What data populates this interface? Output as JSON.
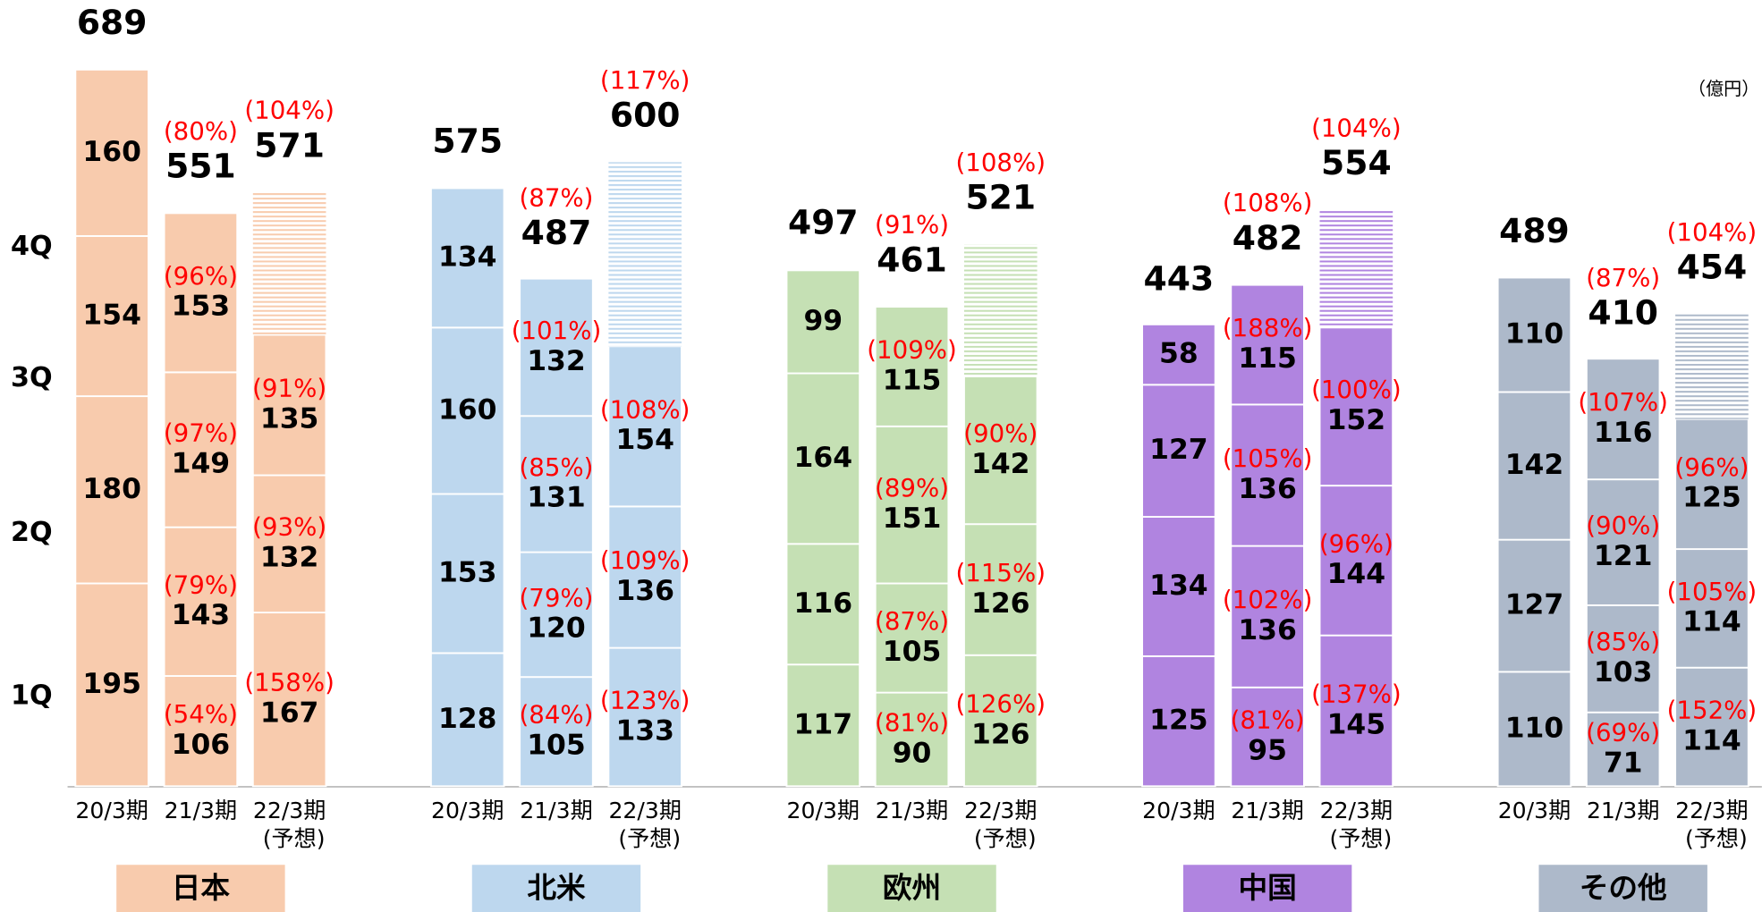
{
  "chart_data": {
    "type": "grouped-stacked-bar",
    "unit": "（億円）",
    "quarters": [
      "1Q",
      "2Q",
      "3Q",
      "4Q"
    ],
    "periods": [
      "20/3期",
      "21/3期",
      "22/3期"
    ],
    "forecast_note": "(予想)",
    "groups": [
      {
        "name": "日本",
        "color": "#f8cbad",
        "series": [
          {
            "values": [
              195,
              180,
              154,
              160
            ],
            "total": 689
          },
          {
            "values": [
              106,
              143,
              149,
              153
            ],
            "total": 551,
            "yoy_labels": [
              "(54%)",
              "(79%)",
              "(97%)",
              "(96%)"
            ],
            "total_yoy_label": "(80%)"
          },
          {
            "values": [
              167,
              132,
              135
            ],
            "total": 571,
            "yoy_labels": [
              "(158%)",
              "(93%)",
              "(91%)"
            ],
            "total_yoy_label": "(104%)",
            "forecast": true
          }
        ]
      },
      {
        "name": "北米",
        "color": "#bdd7ee",
        "series": [
          {
            "values": [
              128,
              153,
              160,
              134
            ],
            "total": 575
          },
          {
            "values": [
              105,
              120,
              131,
              132
            ],
            "total": 487,
            "yoy_labels": [
              "(84%)",
              "(79%)",
              "(85%)",
              "(101%)"
            ],
            "total_yoy_label": "(87%)"
          },
          {
            "values": [
              133,
              136,
              154
            ],
            "total": 600,
            "yoy_labels": [
              "(123%)",
              "(109%)",
              "(108%)"
            ],
            "total_yoy_label": "(117%)",
            "forecast": true
          }
        ]
      },
      {
        "name": "欧州",
        "color": "#c5e0b4",
        "series": [
          {
            "values": [
              117,
              116,
              164,
              99
            ],
            "total": 497
          },
          {
            "values": [
              90,
              105,
              151,
              115
            ],
            "total": 461,
            "yoy_labels": [
              "(81%)",
              "(87%)",
              "(89%)",
              "(109%)"
            ],
            "total_yoy_label": "(91%)"
          },
          {
            "values": [
              126,
              126,
              142
            ],
            "total": 521,
            "yoy_labels": [
              "(126%)",
              "(115%)",
              "(90%)"
            ],
            "total_yoy_label": "(108%)",
            "forecast": true
          }
        ]
      },
      {
        "name": "中国",
        "color": "#b084e0",
        "series": [
          {
            "values": [
              125,
              134,
              127,
              58
            ],
            "total": 443
          },
          {
            "values": [
              95,
              136,
              136,
              115
            ],
            "total": 482,
            "yoy_labels": [
              "(81%)",
              "(102%)",
              "(105%)",
              "(188%)"
            ],
            "total_yoy_label": "(108%)"
          },
          {
            "values": [
              145,
              144,
              152
            ],
            "total": 554,
            "yoy_labels": [
              "(137%)",
              "(96%)",
              "(100%)"
            ],
            "total_yoy_label": "(104%)",
            "forecast": true
          }
        ]
      },
      {
        "name": "その他",
        "color": "#adb9ca",
        "series": [
          {
            "values": [
              110,
              127,
              142,
              110
            ],
            "total": 489
          },
          {
            "values": [
              71,
              103,
              121,
              116
            ],
            "total": 410,
            "yoy_labels": [
              "(69%)",
              "(85%)",
              "(90%)",
              "(107%)"
            ],
            "total_yoy_label": "(87%)"
          },
          {
            "values": [
              114,
              114,
              125
            ],
            "total": 454,
            "yoy_labels": [
              "(152%)",
              "(105%)",
              "(96%)"
            ],
            "total_yoy_label": "(104%)",
            "forecast": true
          }
        ]
      }
    ]
  }
}
